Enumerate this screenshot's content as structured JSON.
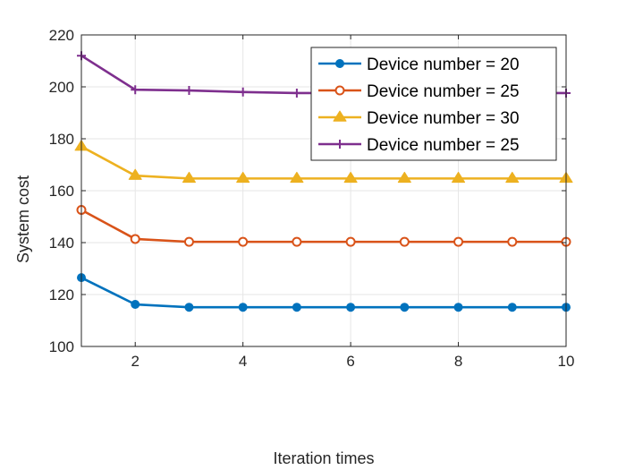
{
  "chart_data": {
    "type": "line",
    "title": "",
    "xlabel": "Iteration times",
    "ylabel": "System cost",
    "xlim": [
      1,
      10
    ],
    "ylim": [
      100,
      220
    ],
    "xticks": [
      2,
      4,
      6,
      8,
      10
    ],
    "yticks": [
      100,
      120,
      140,
      160,
      180,
      200,
      220
    ],
    "grid": true,
    "legend_position": "top-right",
    "x": [
      1,
      2,
      3,
      4,
      5,
      6,
      7,
      8,
      9,
      10
    ],
    "series": [
      {
        "name": "Device number = 20",
        "color": "#0072BD",
        "marker": "filled-circle",
        "values": [
          126.5,
          116.2,
          115.1,
          115.1,
          115.1,
          115.1,
          115.1,
          115.1,
          115.1,
          115.1
        ]
      },
      {
        "name": "Device number = 25",
        "color": "#D95319",
        "marker": "open-circle",
        "values": [
          152.6,
          141.4,
          140.3,
          140.3,
          140.3,
          140.3,
          140.3,
          140.3,
          140.3,
          140.3
        ]
      },
      {
        "name": "Device number = 30",
        "color": "#EDB120",
        "marker": "filled-triangle",
        "values": [
          177.0,
          165.8,
          164.7,
          164.7,
          164.7,
          164.7,
          164.7,
          164.7,
          164.7,
          164.7
        ]
      },
      {
        "name": "Device number = 25",
        "color": "#7E2F8E",
        "marker": "plus",
        "values": [
          212.0,
          198.9,
          198.6,
          198.0,
          197.6,
          197.6,
          197.6,
          197.6,
          197.6,
          197.6
        ]
      }
    ]
  }
}
